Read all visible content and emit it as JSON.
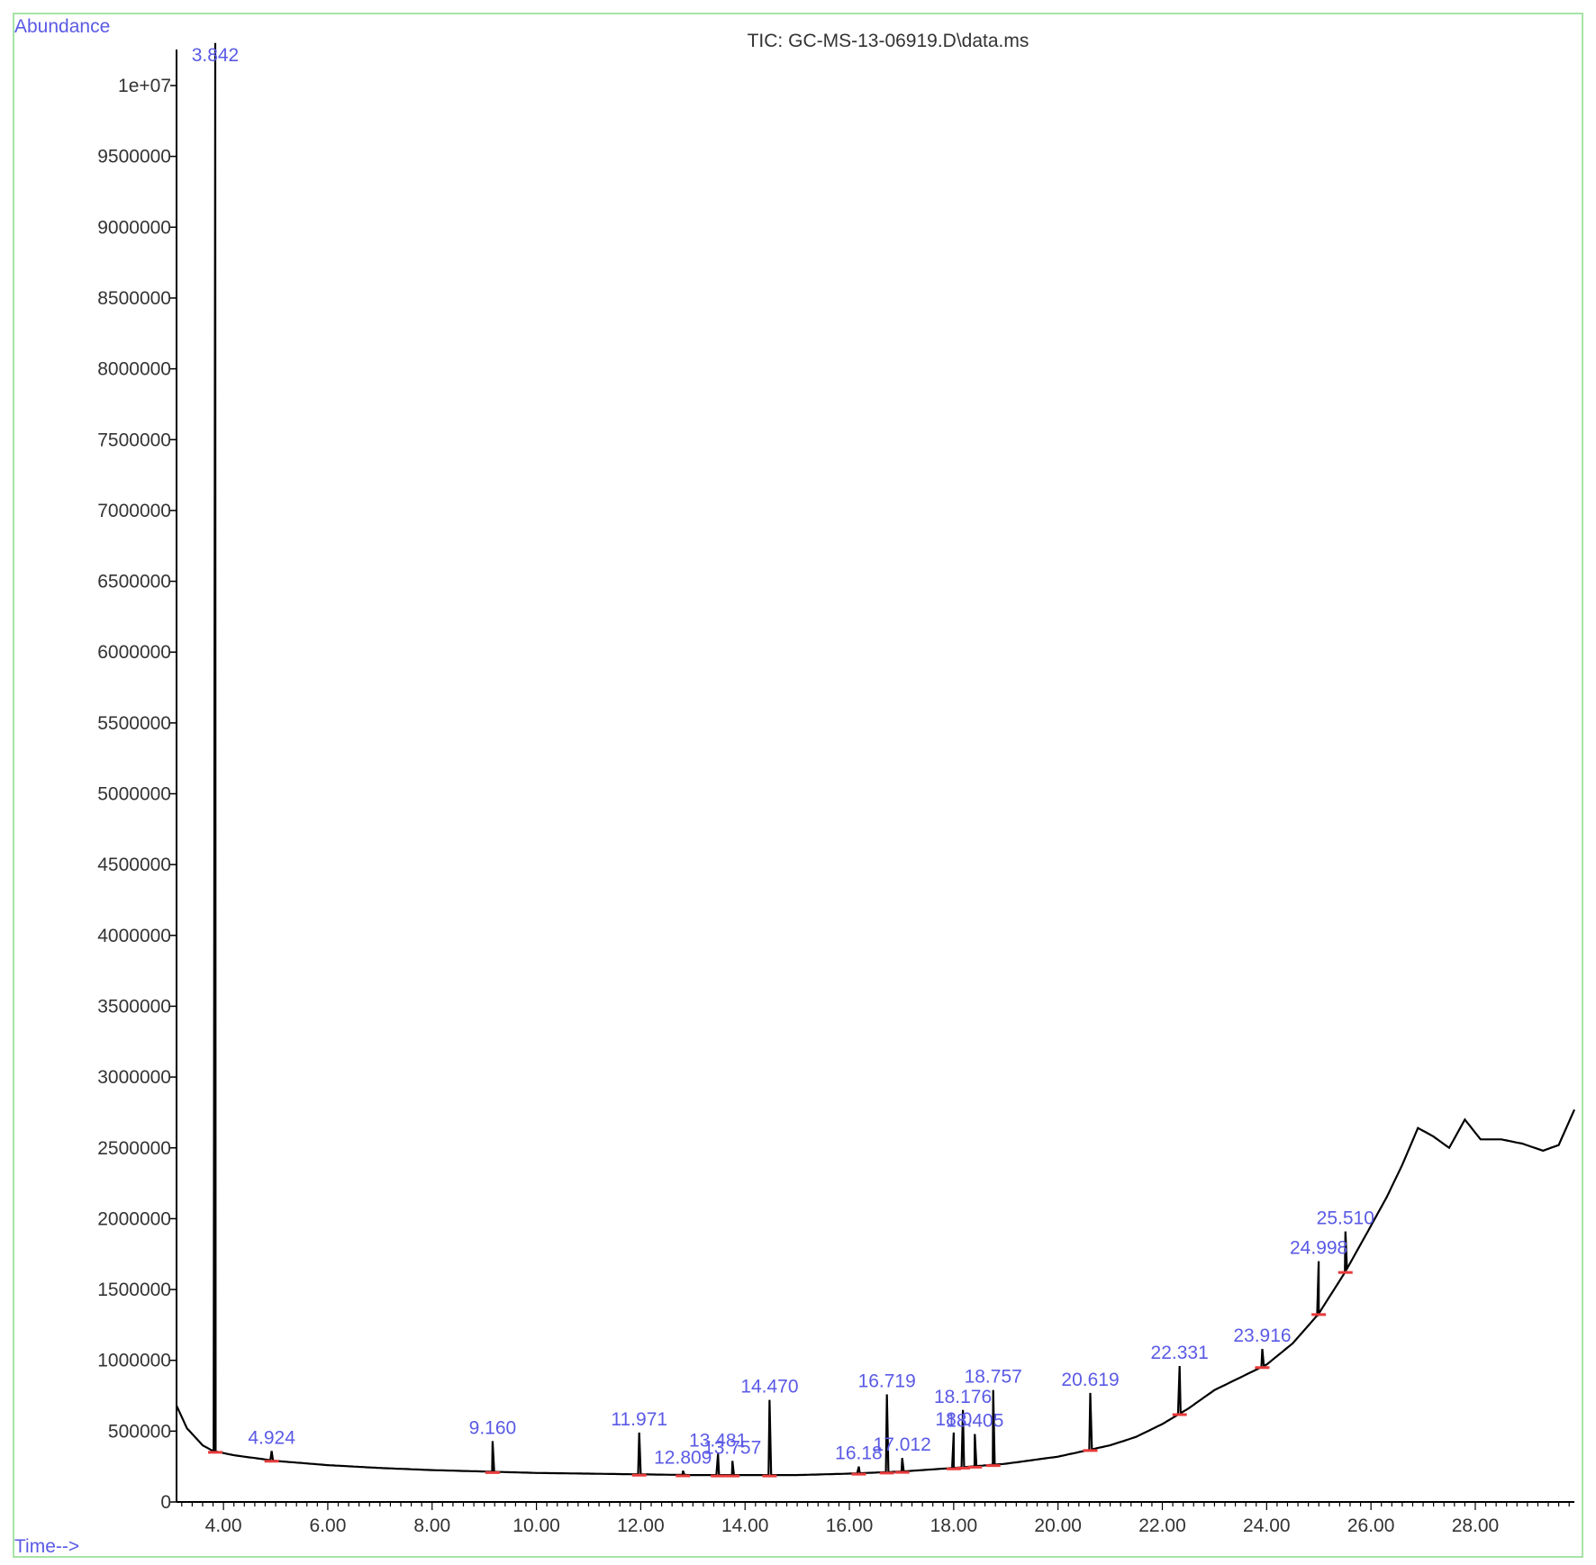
{
  "chart_data": {
    "type": "line",
    "title": "TIC: GC-MS-13-06919.D\\data.ms",
    "ylabel": "Abundance",
    "xlabel": "Time-->",
    "xlim": [
      3.1,
      29.9
    ],
    "ylim": [
      0,
      10500000
    ],
    "xticks": [
      4,
      6,
      8,
      10,
      12,
      14,
      16,
      18,
      20,
      22,
      24,
      26,
      28
    ],
    "xtick_labels": [
      "4.00",
      "6.00",
      "8.00",
      "10.00",
      "12.00",
      "14.00",
      "16.00",
      "18.00",
      "20.00",
      "22.00",
      "24.00",
      "26.00",
      "28.00"
    ],
    "yticks": [
      0,
      500000,
      1000000,
      1500000,
      2000000,
      2500000,
      3000000,
      3500000,
      4000000,
      4500000,
      5000000,
      5500000,
      6000000,
      6500000,
      7000000,
      7500000,
      8000000,
      8500000,
      9000000,
      9500000,
      10000000
    ],
    "ytick_labels": [
      "0",
      "500000",
      "1000000",
      "1500000",
      "2000000",
      "2500000",
      "3000000",
      "3500000",
      "4000000",
      "4500000",
      "5000000",
      "5500000",
      "6000000",
      "6500000",
      "7000000",
      "7500000",
      "8000000",
      "8500000",
      "9000000",
      "9500000",
      "1e+07"
    ],
    "baseline": [
      [
        3.1,
        680000
      ],
      [
        3.3,
        520000
      ],
      [
        3.6,
        400000
      ],
      [
        3.8,
        360000
      ],
      [
        4.2,
        330000
      ],
      [
        5.0,
        290000
      ],
      [
        6.0,
        260000
      ],
      [
        7.0,
        240000
      ],
      [
        8.0,
        225000
      ],
      [
        9.0,
        215000
      ],
      [
        10.0,
        205000
      ],
      [
        11.0,
        200000
      ],
      [
        12.0,
        195000
      ],
      [
        13.0,
        190000
      ],
      [
        14.0,
        190000
      ],
      [
        15.0,
        190000
      ],
      [
        16.0,
        200000
      ],
      [
        17.0,
        215000
      ],
      [
        18.0,
        240000
      ],
      [
        19.0,
        270000
      ],
      [
        20.0,
        320000
      ],
      [
        21.0,
        400000
      ],
      [
        21.5,
        460000
      ],
      [
        22.0,
        550000
      ],
      [
        22.5,
        660000
      ],
      [
        23.0,
        790000
      ],
      [
        23.5,
        880000
      ],
      [
        24.0,
        970000
      ],
      [
        24.5,
        1120000
      ],
      [
        25.0,
        1330000
      ],
      [
        25.5,
        1620000
      ],
      [
        26.0,
        1950000
      ],
      [
        26.3,
        2150000
      ],
      [
        26.6,
        2380000
      ],
      [
        26.9,
        2640000
      ],
      [
        27.2,
        2580000
      ],
      [
        27.5,
        2500000
      ],
      [
        27.8,
        2700000
      ],
      [
        28.1,
        2560000
      ],
      [
        28.5,
        2560000
      ],
      [
        28.9,
        2530000
      ],
      [
        29.3,
        2480000
      ],
      [
        29.6,
        2520000
      ],
      [
        29.9,
        2770000
      ]
    ],
    "peaks": [
      {
        "rt": 3.842,
        "height": 10300000,
        "label": "3.842"
      },
      {
        "rt": 4.924,
        "height": 360000,
        "label": "4.924"
      },
      {
        "rt": 9.16,
        "height": 430000,
        "label": "9.160"
      },
      {
        "rt": 11.971,
        "height": 490000,
        "label": "11.971"
      },
      {
        "rt": 12.809,
        "height": 220000,
        "label": "12.809"
      },
      {
        "rt": 13.481,
        "height": 340000,
        "label": "13.481"
      },
      {
        "rt": 13.757,
        "height": 290000,
        "label": "13.757"
      },
      {
        "rt": 14.47,
        "height": 720000,
        "label": "14.470"
      },
      {
        "rt": 16.18,
        "height": 250000,
        "label": "16.18"
      },
      {
        "rt": 16.719,
        "height": 760000,
        "label": "16.719"
      },
      {
        "rt": 17.012,
        "height": 310000,
        "label": "17.012"
      },
      {
        "rt": 18.0,
        "height": 490000,
        "label": "18.0"
      },
      {
        "rt": 18.176,
        "height": 650000,
        "label": "18.176"
      },
      {
        "rt": 18.405,
        "height": 480000,
        "label": "18.405"
      },
      {
        "rt": 18.757,
        "height": 790000,
        "label": "18.757"
      },
      {
        "rt": 20.619,
        "height": 770000,
        "label": "20.619"
      },
      {
        "rt": 22.331,
        "height": 960000,
        "label": "22.331"
      },
      {
        "rt": 23.916,
        "height": 1080000,
        "label": "23.916"
      },
      {
        "rt": 24.998,
        "height": 1700000,
        "label": "24.998"
      },
      {
        "rt": 25.51,
        "height": 1910000,
        "label": "25.510"
      }
    ]
  }
}
